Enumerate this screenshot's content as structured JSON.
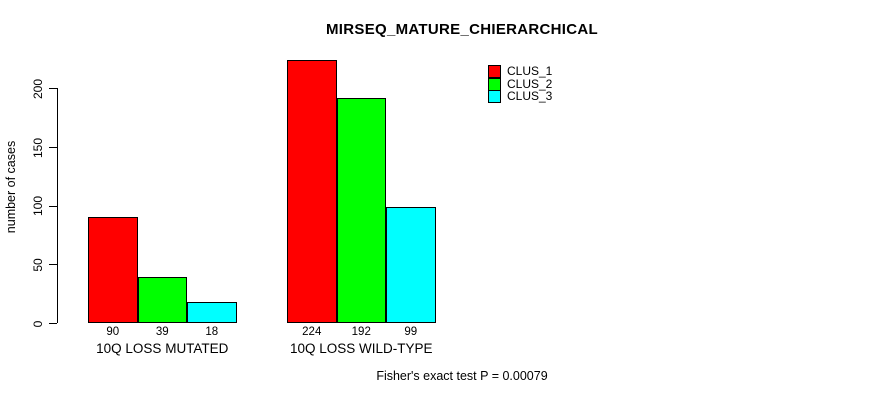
{
  "chart_data": {
    "type": "bar",
    "title": "MIRSEQ_MATURE_CHIERARCHICAL",
    "ylabel": "number of cases",
    "xlabel": "",
    "categories": [
      "10Q LOSS MUTATED",
      "10Q LOSS WILD-TYPE"
    ],
    "series": [
      {
        "name": "CLUS_1",
        "color": "#ff0000",
        "values": [
          90,
          224
        ]
      },
      {
        "name": "CLUS_2",
        "color": "#00ff00",
        "values": [
          39,
          192
        ]
      },
      {
        "name": "CLUS_3",
        "color": "#00ffff",
        "values": [
          18,
          99
        ]
      }
    ],
    "bar_value_labels": [
      [
        "90",
        "39",
        "18"
      ],
      [
        "224",
        "192",
        "99"
      ]
    ],
    "yticks": [
      0,
      50,
      100,
      150,
      200
    ],
    "ylim": [
      0,
      224
    ],
    "grid": false,
    "legend_position": "top-right",
    "annotation": "Fisher's exact test P = 0.00079"
  },
  "colors": {
    "background": "#ffffff",
    "text": "#000000",
    "axis": "#000000",
    "bar_border": "#000000"
  }
}
